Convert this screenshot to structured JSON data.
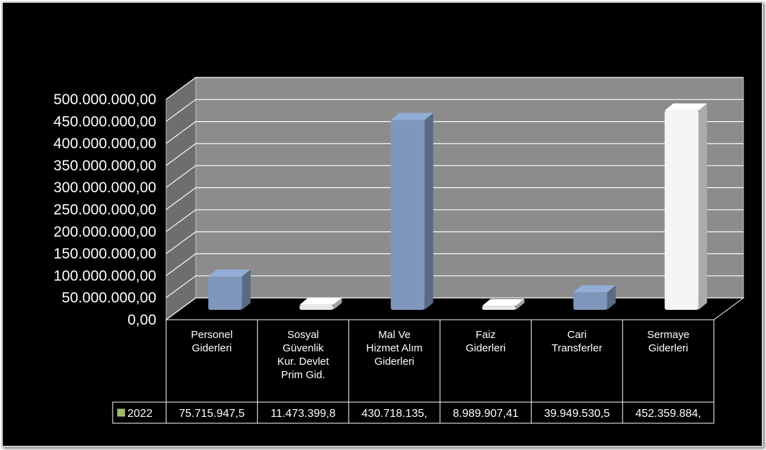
{
  "chart_data": {
    "type": "bar",
    "categories": [
      [
        "Personel",
        "Giderleri"
      ],
      [
        "Sosyal",
        "Güvenlik",
        "Kur. Devlet",
        "Prim Gid."
      ],
      [
        "Mal Ve",
        "Hizmet Alım",
        "Giderleri"
      ],
      [
        "Faiz",
        "Giderleri"
      ],
      [
        "Cari",
        "Transferler"
      ],
      [
        "Sermaye",
        "Giderleri"
      ]
    ],
    "series": [
      {
        "name": "2022",
        "values": [
          75715947.5,
          11473399.8,
          430718135,
          8989907.41,
          39949530.5,
          452359884
        ],
        "labels": [
          "75.715.947,5",
          "11.473.399,8",
          "430.718.135,",
          "8.989.907,41",
          "39.949.530,5",
          "452.359.884,"
        ]
      }
    ],
    "bar_colors": [
      "#7f97bb",
      "#e8e8e8",
      "#7f97bb",
      "#e8e8e8",
      "#7f97bb",
      "#f4f4f4"
    ],
    "ylim": [
      0,
      500000000
    ],
    "yticks": [
      "0,00",
      "50.000.000,00",
      "100.000.000,00",
      "150.000.000,00",
      "200.000.000,00",
      "250.000.000,00",
      "300.000.000,00",
      "350.000.000,00",
      "400.000.000,00",
      "450.000.000,00",
      "500.000.000,00"
    ],
    "grid": true,
    "legend_key_color": "#9bbb59",
    "wall_color": "#8c8c8c",
    "side_wall_color": "#6e6e6e"
  }
}
